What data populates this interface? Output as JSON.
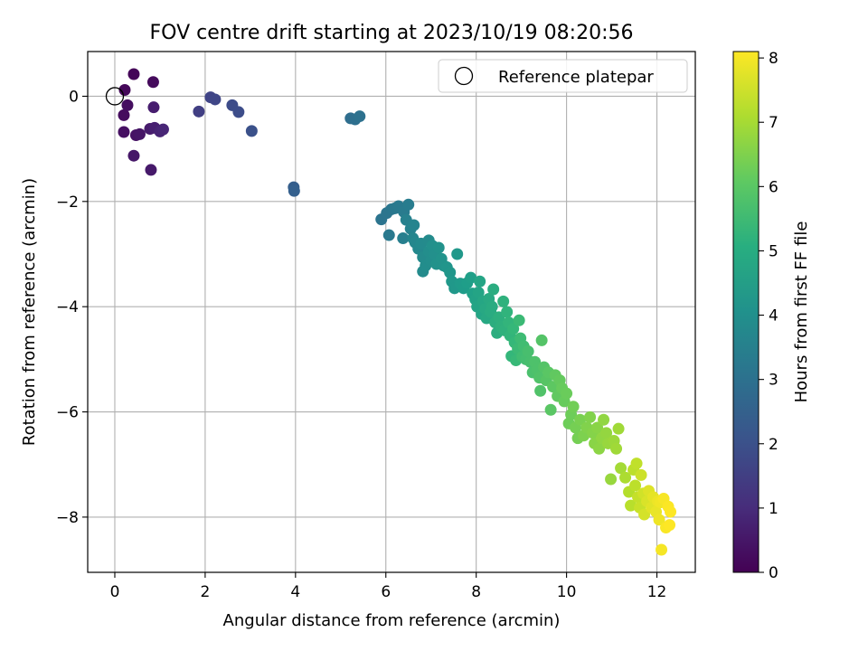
{
  "chart_data": {
    "type": "scatter",
    "title": "FOV centre drift starting at 2023/10/19 08:20:56",
    "xlabel": "Angular distance from reference (arcmin)",
    "ylabel": "Rotation from reference (arcmin)",
    "xlim": [
      -0.6,
      12.85
    ],
    "ylim": [
      -9.05,
      0.85
    ],
    "x_ticks": [
      0,
      2,
      4,
      6,
      8,
      10,
      12
    ],
    "y_ticks": [
      0,
      -2,
      -4,
      -6,
      -8
    ],
    "x_tick_labels": [
      "0",
      "2",
      "4",
      "6",
      "8",
      "10",
      "12"
    ],
    "y_tick_labels": [
      "0",
      "−2",
      "−4",
      "−6",
      "−8"
    ],
    "grid": true,
    "legend": {
      "position": "top-right",
      "entries": [
        "Reference platepar"
      ]
    },
    "reference_point": {
      "x": 0,
      "y": 0
    },
    "colorbar": {
      "label": "Hours from first FF file",
      "range": [
        0,
        8.1
      ],
      "ticks": [
        0,
        1,
        2,
        3,
        4,
        5,
        6,
        7,
        8
      ],
      "tick_labels": [
        "0",
        "1",
        "2",
        "3",
        "4",
        "5",
        "6",
        "7",
        "8"
      ],
      "colormap": "viridis"
    },
    "points": [
      [
        0.42,
        0.42,
        0.1
      ],
      [
        0.22,
        0.12,
        0.15
      ],
      [
        0.85,
        0.27,
        0.2
      ],
      [
        0.2,
        -0.36,
        0.25
      ],
      [
        0.28,
        -0.17,
        0.3
      ],
      [
        0.2,
        -0.68,
        0.35
      ],
      [
        0.47,
        -0.74,
        0.4
      ],
      [
        0.55,
        -0.72,
        0.45
      ],
      [
        0.42,
        -1.13,
        0.5
      ],
      [
        0.8,
        -1.4,
        0.55
      ],
      [
        0.78,
        -0.62,
        0.6
      ],
      [
        0.86,
        -0.21,
        0.65
      ],
      [
        0.88,
        -0.6,
        0.7
      ],
      [
        1.0,
        -0.67,
        0.8
      ],
      [
        1.07,
        -0.63,
        0.85
      ],
      [
        1.86,
        -0.29,
        1.5
      ],
      [
        2.12,
        -0.02,
        1.65
      ],
      [
        2.22,
        -0.06,
        1.7
      ],
      [
        2.6,
        -0.17,
        1.85
      ],
      [
        2.74,
        -0.3,
        1.9
      ],
      [
        3.03,
        -0.66,
        2.0
      ],
      [
        3.96,
        -1.73,
        2.4
      ],
      [
        3.97,
        -1.8,
        2.45
      ],
      [
        5.22,
        -0.42,
        2.9
      ],
      [
        5.32,
        -0.44,
        2.95
      ],
      [
        5.42,
        -0.38,
        3.0
      ],
      [
        5.9,
        -2.34,
        3.1
      ],
      [
        6.02,
        -2.22,
        3.15
      ],
      [
        6.12,
        -2.15,
        3.2
      ],
      [
        6.2,
        -2.13,
        3.25
      ],
      [
        6.28,
        -2.09,
        3.3
      ],
      [
        6.4,
        -2.2,
        3.35
      ],
      [
        6.5,
        -2.06,
        3.4
      ],
      [
        6.07,
        -2.64,
        3.3
      ],
      [
        6.38,
        -2.7,
        3.5
      ],
      [
        6.45,
        -2.35,
        3.55
      ],
      [
        6.55,
        -2.52,
        3.6
      ],
      [
        6.62,
        -2.45,
        3.65
      ],
      [
        6.6,
        -2.7,
        3.7
      ],
      [
        6.65,
        -2.78,
        3.75
      ],
      [
        6.72,
        -2.9,
        3.8
      ],
      [
        6.78,
        -2.8,
        3.85
      ],
      [
        6.82,
        -3.06,
        3.9
      ],
      [
        6.82,
        -3.33,
        3.9
      ],
      [
        6.88,
        -3.22,
        3.95
      ],
      [
        6.95,
        -2.74,
        3.9
      ],
      [
        6.95,
        -2.95,
        4.0
      ],
      [
        7.0,
        -3.13,
        4.0
      ],
      [
        7.03,
        -2.84,
        4.05
      ],
      [
        7.08,
        -3.0,
        4.05
      ],
      [
        7.12,
        -3.19,
        4.1
      ],
      [
        7.17,
        -2.88,
        4.1
      ],
      [
        7.23,
        -3.09,
        4.15
      ],
      [
        7.28,
        -3.22,
        4.15
      ],
      [
        7.35,
        -3.25,
        4.2
      ],
      [
        7.42,
        -3.35,
        4.25
      ],
      [
        7.46,
        -3.52,
        4.3
      ],
      [
        7.52,
        -3.65,
        4.3
      ],
      [
        7.58,
        -3.0,
        4.3
      ],
      [
        7.65,
        -3.56,
        4.4
      ],
      [
        7.72,
        -3.65,
        4.45
      ],
      [
        7.8,
        -3.55,
        4.5
      ],
      [
        7.88,
        -3.45,
        4.55
      ],
      [
        7.92,
        -3.75,
        4.6
      ],
      [
        7.98,
        -3.86,
        4.65
      ],
      [
        8.02,
        -4.0,
        4.7
      ],
      [
        8.05,
        -3.73,
        4.7
      ],
      [
        8.08,
        -3.52,
        4.75
      ],
      [
        8.12,
        -4.14,
        4.75
      ],
      [
        8.15,
        -3.9,
        4.8
      ],
      [
        8.2,
        -4.04,
        4.85
      ],
      [
        8.23,
        -4.22,
        4.85
      ],
      [
        8.28,
        -3.85,
        4.9
      ],
      [
        8.32,
        -4.1,
        4.95
      ],
      [
        8.35,
        -4.0,
        4.95
      ],
      [
        8.38,
        -3.67,
        5.0
      ],
      [
        8.42,
        -4.3,
        5.05
      ],
      [
        8.46,
        -4.5,
        5.05
      ],
      [
        8.5,
        -4.2,
        5.1
      ],
      [
        8.55,
        -4.38,
        5.15
      ],
      [
        8.6,
        -3.9,
        5.2
      ],
      [
        8.63,
        -4.45,
        5.2
      ],
      [
        8.68,
        -4.1,
        5.25
      ],
      [
        8.72,
        -4.3,
        5.3
      ],
      [
        8.75,
        -4.55,
        5.3
      ],
      [
        8.78,
        -4.94,
        5.35
      ],
      [
        8.82,
        -4.42,
        5.4
      ],
      [
        8.85,
        -4.68,
        5.4
      ],
      [
        8.88,
        -5.02,
        5.45
      ],
      [
        8.92,
        -4.8,
        5.5
      ],
      [
        8.95,
        -4.26,
        5.5
      ],
      [
        8.98,
        -4.6,
        5.55
      ],
      [
        9.02,
        -4.95,
        5.6
      ],
      [
        9.05,
        -4.75,
        5.6
      ],
      [
        9.1,
        -5.0,
        5.65
      ],
      [
        9.15,
        -4.85,
        5.7
      ],
      [
        9.2,
        -5.05,
        5.7
      ],
      [
        9.25,
        -5.25,
        5.75
      ],
      [
        9.3,
        -5.05,
        5.8
      ],
      [
        9.35,
        -5.2,
        5.8
      ],
      [
        9.4,
        -5.35,
        5.85
      ],
      [
        9.42,
        -5.6,
        5.85
      ],
      [
        9.45,
        -4.64,
        5.9
      ],
      [
        9.5,
        -5.15,
        5.9
      ],
      [
        9.55,
        -5.4,
        5.95
      ],
      [
        9.6,
        -5.25,
        6.0
      ],
      [
        9.65,
        -5.96,
        6.0
      ],
      [
        9.7,
        -5.52,
        6.05
      ],
      [
        9.75,
        -5.3,
        6.1
      ],
      [
        9.8,
        -5.7,
        6.1
      ],
      [
        9.85,
        -5.4,
        6.15
      ],
      [
        9.9,
        -5.55,
        6.2
      ],
      [
        9.95,
        -5.8,
        6.2
      ],
      [
        10.0,
        -5.65,
        6.25
      ],
      [
        10.05,
        -6.22,
        6.3
      ],
      [
        10.1,
        -6.05,
        6.3
      ],
      [
        10.15,
        -5.9,
        6.35
      ],
      [
        10.2,
        -6.3,
        6.4
      ],
      [
        10.25,
        -6.5,
        6.4
      ],
      [
        10.3,
        -6.15,
        6.45
      ],
      [
        10.38,
        -6.45,
        6.5
      ],
      [
        10.45,
        -6.3,
        6.55
      ],
      [
        10.52,
        -6.1,
        6.55
      ],
      [
        10.58,
        -6.4,
        6.6
      ],
      [
        10.62,
        -6.6,
        6.65
      ],
      [
        10.68,
        -6.3,
        6.65
      ],
      [
        10.72,
        -6.7,
        6.7
      ],
      [
        10.78,
        -6.5,
        6.75
      ],
      [
        10.82,
        -6.15,
        6.75
      ],
      [
        10.88,
        -6.4,
        6.8
      ],
      [
        10.92,
        -6.6,
        6.85
      ],
      [
        10.98,
        -7.28,
        6.85
      ],
      [
        11.05,
        -6.55,
        6.9
      ],
      [
        11.1,
        -6.7,
        6.95
      ],
      [
        11.15,
        -6.32,
        6.95
      ],
      [
        11.2,
        -7.07,
        7.0
      ],
      [
        11.3,
        -7.25,
        7.1
      ],
      [
        11.38,
        -7.52,
        7.2
      ],
      [
        11.42,
        -7.78,
        7.25
      ],
      [
        11.48,
        -7.1,
        7.3
      ],
      [
        11.52,
        -7.4,
        7.3
      ],
      [
        11.55,
        -6.98,
        7.35
      ],
      [
        11.58,
        -7.62,
        7.4
      ],
      [
        11.62,
        -7.82,
        7.45
      ],
      [
        11.65,
        -7.2,
        7.5
      ],
      [
        11.7,
        -7.55,
        7.55
      ],
      [
        11.72,
        -7.95,
        7.6
      ],
      [
        11.78,
        -7.7,
        7.65
      ],
      [
        11.82,
        -7.5,
        7.7
      ],
      [
        11.88,
        -7.82,
        7.75
      ],
      [
        11.92,
        -7.62,
        7.8
      ],
      [
        11.98,
        -7.9,
        7.85
      ],
      [
        12.02,
        -7.7,
        7.9
      ],
      [
        12.05,
        -8.05,
        7.92
      ],
      [
        12.08,
        -7.72,
        7.95
      ],
      [
        12.1,
        -8.62,
        8.0
      ],
      [
        12.15,
        -7.65,
        8.02
      ],
      [
        12.2,
        -8.2,
        8.05
      ],
      [
        12.25,
        -7.8,
        8.08
      ],
      [
        12.3,
        -7.9,
        8.1
      ],
      [
        12.28,
        -8.15,
        8.1
      ]
    ]
  }
}
